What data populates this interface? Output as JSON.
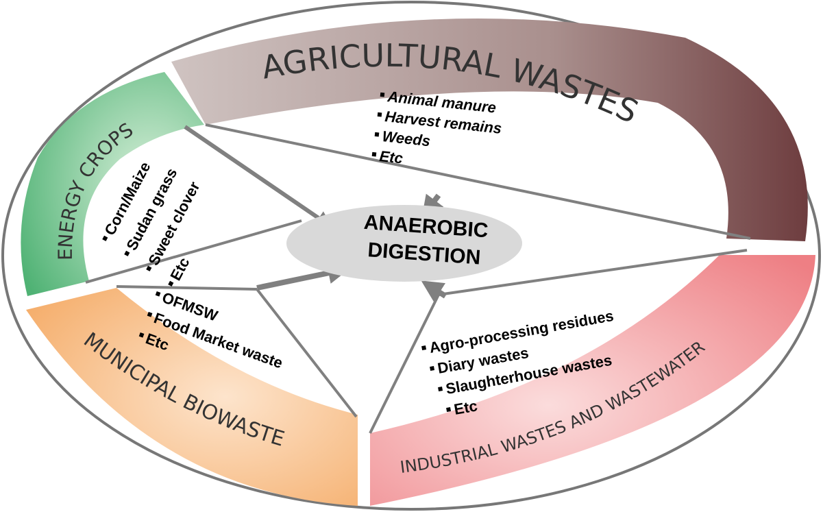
{
  "center": [
    "ANAEROBIC",
    "DIGESTION"
  ],
  "sectors": [
    {
      "title": "AGRICULTURAL WASTES",
      "items": [
        "Animal manure",
        "Harvest remains",
        "Weeds",
        "Etc"
      ]
    },
    {
      "title": "ENERGY CROPS",
      "items": [
        "Corn/Maize",
        "Sudan grass",
        "Sweet clover",
        "Etc"
      ]
    },
    {
      "title": "MUNICIPAL BIOWASTE",
      "items": [
        "OFMSW",
        "Food Market waste",
        "Etc"
      ]
    },
    {
      "title": "INDUSTRIAL WASTES AND WASTEWATER",
      "items": [
        "Agro-processing residues",
        "Diary wastes",
        "Slaughterhouse wastes",
        "Etc"
      ]
    }
  ]
}
